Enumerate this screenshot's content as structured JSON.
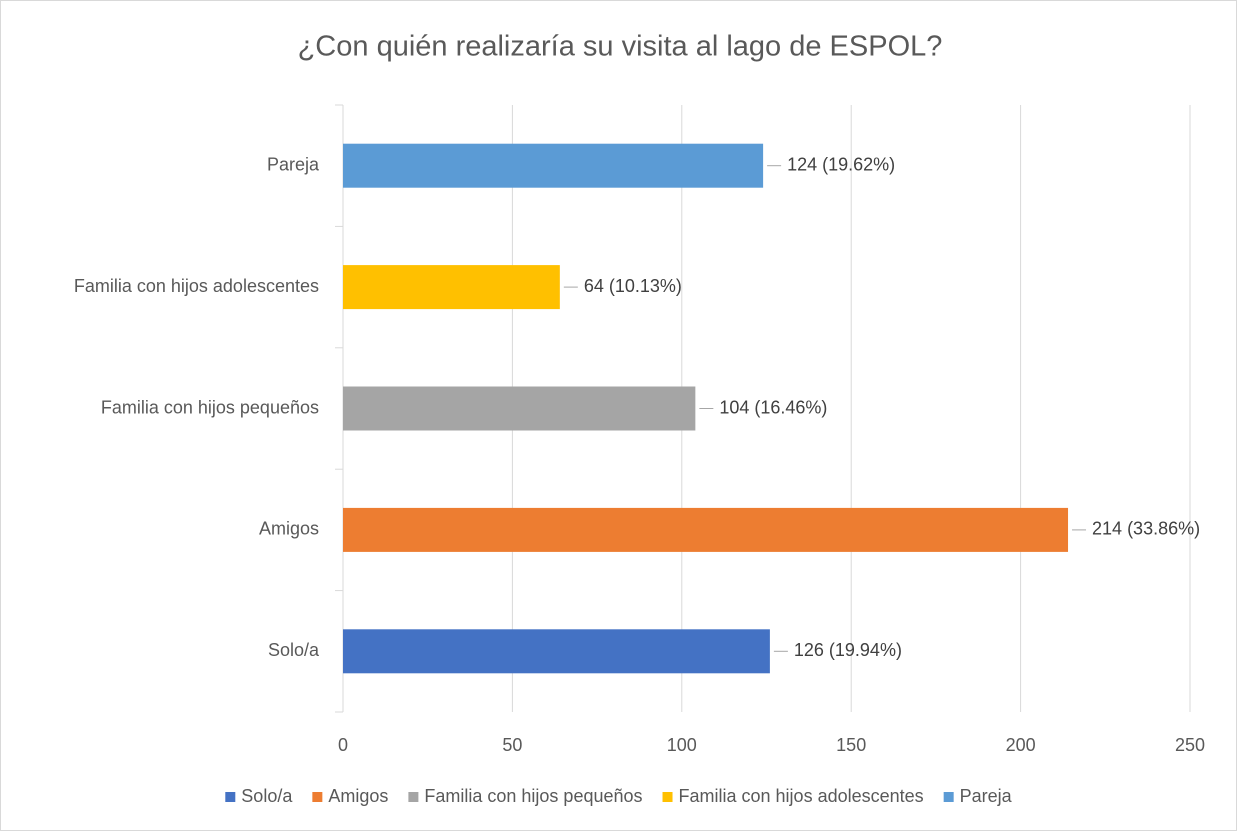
{
  "chart_data": {
    "type": "bar",
    "orientation": "horizontal",
    "title": "¿Con quién realizaría su visita al lago de ESPOL?",
    "categories": [
      "Solo/a",
      "Amigos",
      "Familia con hijos pequeños",
      "Familia con hijos adolescentes",
      "Pareja"
    ],
    "values": [
      126,
      214,
      104,
      64,
      124
    ],
    "value_labels": [
      "126 (19.94%)",
      "214 (33.86%)",
      "104 (16.46%)",
      "64 (10.13%)",
      "124 (19.62%)"
    ],
    "colors": [
      "#4472c4",
      "#ed7d31",
      "#a5a5a5",
      "#ffc000",
      "#5b9bd5"
    ],
    "xlim": [
      0,
      250
    ],
    "xticks": [
      0,
      50,
      100,
      150,
      200,
      250
    ],
    "grid": true,
    "legend": "bottom"
  }
}
